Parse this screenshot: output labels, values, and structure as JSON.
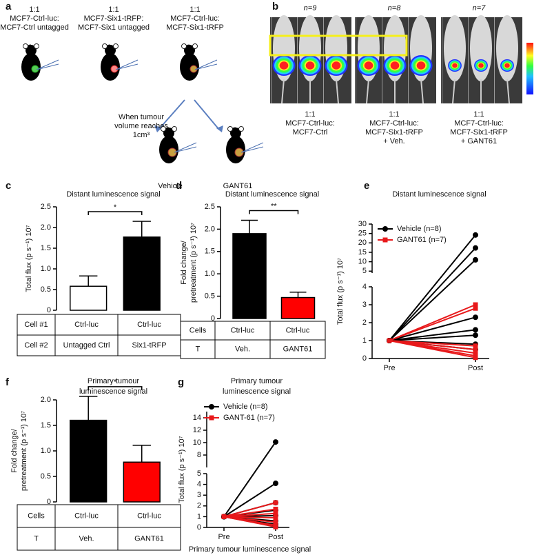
{
  "panel_labels": [
    "a",
    "b",
    "c",
    "d",
    "e",
    "f",
    "g"
  ],
  "panel_a": {
    "groups": [
      [
        "1:1",
        "MCF7-Ctrl-luc:",
        "MCF7-Ctrl untagged"
      ],
      [
        "1:1",
        "MCF7-Six1-tRFP:",
        "MCF7-Six1 untagged"
      ],
      [
        "1:1",
        "MCF7-Ctrl-luc:",
        "MCF7-Six1-tRFP"
      ]
    ],
    "condition": [
      "When tumour",
      "volume reaches",
      "1cm³"
    ],
    "treatments": [
      "Vehicle",
      "GANT61"
    ]
  },
  "panel_b": {
    "n": [
      "n=9",
      "n=8",
      "n=7"
    ],
    "groups": [
      [
        "1:1",
        "MCF7-Ctrl-luc:",
        "MCF7-Ctrl"
      ],
      [
        "1:1",
        "MCF7-Ctrl-luc:",
        "MCF7-Six1-tRFP",
        "+ Veh."
      ],
      [
        "1:1",
        "MCF7-Ctrl-luc:",
        "MCF7-Six1-tRFP",
        "+ GANT61"
      ]
    ]
  },
  "chart_data": [
    {
      "type": "bar",
      "title": [
        "Distant luminescence signal"
      ],
      "ylabel": [
        "Total flux (p s⁻¹) 10⁷"
      ],
      "values": [
        0.58,
        1.77
      ],
      "errors": [
        0.25,
        0.38
      ],
      "colors": [
        "#ffffff",
        "#000000"
      ],
      "ylim": [
        0,
        2.5
      ],
      "yticks": [
        0,
        0.5,
        {
          "value": 1,
          "label": "1.0"
        },
        1.5,
        {
          "value": 2,
          "label": "2.0"
        },
        2.5
      ],
      "significance": "*",
      "table": [
        [
          "Cell #1",
          "Ctrl-luc",
          "Ctrl-luc"
        ],
        [
          "Cell #2",
          "Untagged Ctrl",
          "Six1-tRFP"
        ]
      ]
    },
    {
      "type": "bar",
      "title": [
        "Distant luminescence signal"
      ],
      "ylabel": [
        "Fold change/",
        "pretreatment (p s⁻¹) 10⁷"
      ],
      "values": [
        1.9,
        0.47
      ],
      "errors": [
        0.3,
        0.12
      ],
      "colors": [
        "#000000",
        "#ff0000"
      ],
      "ylim": [
        0,
        2.5
      ],
      "yticks": [
        0,
        0.5,
        {
          "value": 1,
          "label": "1.0"
        },
        1.5,
        {
          "value": 2,
          "label": "2.0"
        },
        2.5
      ],
      "significance": "**",
      "table": [
        [
          "Cells",
          "Ctrl-luc",
          "Ctrl-luc"
        ],
        [
          "T",
          "Veh.",
          "GANT61"
        ]
      ]
    },
    {
      "type": "line",
      "title": [
        "Distant luminescence signal"
      ],
      "ylabel": [
        "Total flux (p s⁻¹) 10⁷"
      ],
      "categories": [
        "Pre",
        "Post"
      ],
      "ylim_lower": [
        0,
        4
      ],
      "yticks_lower": [
        0,
        1,
        2,
        3,
        4
      ],
      "ylim_upper": [
        4,
        30
      ],
      "yticks_upper": [
        5,
        10,
        15,
        20,
        25,
        30
      ],
      "series": [
        {
          "name": "Vehicle (n=8)",
          "color": "#000000",
          "marker": "circle",
          "values": [
            [
              1,
              24.2
            ],
            [
              1,
              17.3
            ],
            [
              1,
              11
            ],
            [
              1,
              2.3
            ],
            [
              1,
              1.6
            ],
            [
              1,
              1.3
            ],
            [
              1,
              0.8
            ],
            [
              1,
              0.5
            ]
          ]
        },
        {
          "name": "GANT61 (n=7)",
          "color": "#e8191b",
          "marker": "square",
          "values": [
            [
              1,
              3
            ],
            [
              1,
              2.8
            ],
            [
              1,
              0.7
            ],
            [
              1,
              0.5
            ],
            [
              1,
              0.3
            ],
            [
              1,
              0.15
            ],
            [
              1,
              0.05
            ]
          ]
        }
      ]
    },
    {
      "type": "bar",
      "title": [
        "Primary tumour",
        "luminescence signal"
      ],
      "ylabel": [
        "Fold change/",
        "pretreatment (p s⁻¹) 10⁷"
      ],
      "values": [
        1.6,
        0.78
      ],
      "errors": [
        0.47,
        0.33
      ],
      "colors": [
        "#000000",
        "#ff0000"
      ],
      "ylim": [
        0,
        2
      ],
      "yticks": [
        0,
        0.5,
        {
          "value": 1,
          "label": "1.0"
        },
        1.5,
        {
          "value": 2,
          "label": "2.0"
        }
      ],
      "significance": "*",
      "table": [
        [
          "Cells",
          "Ctrl-luc",
          "Ctrl-luc"
        ],
        [
          "T",
          "Veh.",
          "GANT61"
        ]
      ]
    },
    {
      "type": "line",
      "title": [
        "Primary tumour",
        "luminescence signal"
      ],
      "ylabel": [
        "Total flux (p s⁻¹) 10⁷"
      ],
      "xlabel": "Primary tumour luminescence signal",
      "categories": [
        "Pre",
        "Post"
      ],
      "ylim_lower": [
        0,
        5
      ],
      "yticks_lower": [
        0,
        1,
        2,
        3,
        4,
        5
      ],
      "ylim_upper": [
        6,
        15
      ],
      "yticks_upper": [
        8,
        10,
        12,
        14
      ],
      "series": [
        {
          "name": "Vehicle (n=8)",
          "color": "#000000",
          "marker": "circle",
          "values": [
            [
              1,
              10.1
            ],
            [
              1,
              4.1
            ],
            [
              1,
              2.3
            ],
            [
              1,
              1.6
            ],
            [
              1,
              1.1
            ],
            [
              1,
              0.6
            ],
            [
              1,
              0.3
            ],
            [
              1,
              0.1
            ]
          ]
        },
        {
          "name": "GANT-61 (n=7)",
          "color": "#e8191b",
          "marker": "square",
          "values": [
            [
              1,
              2.3
            ],
            [
              1,
              1.7
            ],
            [
              1,
              1.3
            ],
            [
              1,
              0.9
            ],
            [
              1,
              0.5
            ],
            [
              1,
              0.2
            ],
            [
              1,
              0.05
            ]
          ]
        }
      ]
    }
  ]
}
